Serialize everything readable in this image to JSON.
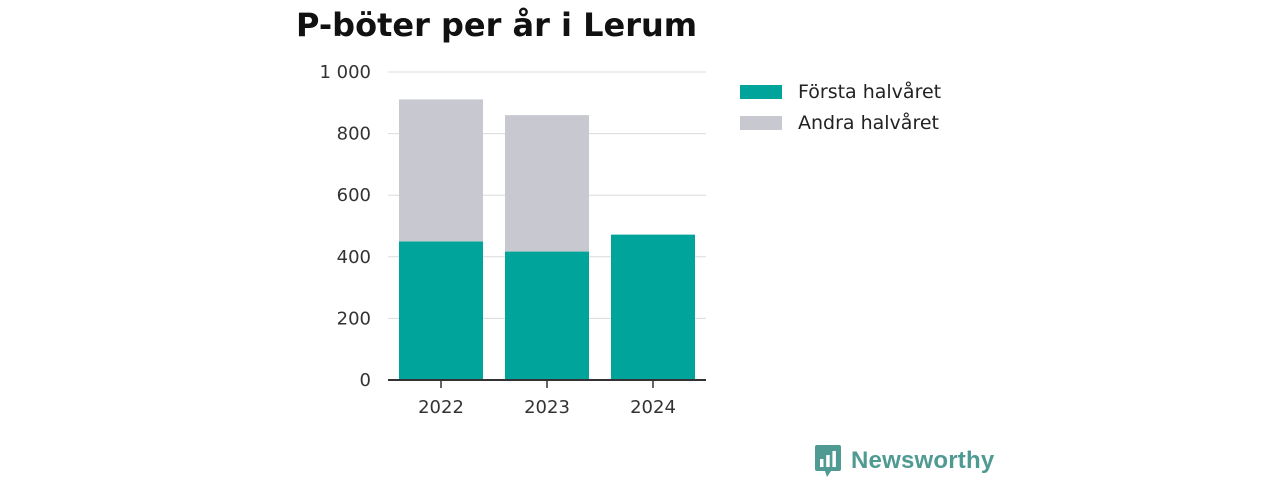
{
  "chart_data": {
    "type": "bar",
    "stacked": true,
    "title": "P-böter per år i Lerum",
    "categories": [
      "2022",
      "2023",
      "2024"
    ],
    "series": [
      {
        "name": "Första halvåret",
        "values": [
          450,
          417,
          472
        ],
        "color": "#00a49b"
      },
      {
        "name": "Andra halvåret",
        "values": [
          461,
          443,
          0
        ],
        "color": "#c8c8d0"
      }
    ],
    "yticks": [
      "0",
      "200",
      "400",
      "600",
      "800",
      "1 000"
    ],
    "ytick_values": [
      0,
      200,
      400,
      600,
      800,
      1000
    ],
    "ylim": [
      0,
      1000
    ],
    "grid": true,
    "legend_position": "right"
  },
  "branding": {
    "name": "Newsworthy",
    "icon": "bar-chart-badge-icon",
    "color": "#4f9a93"
  }
}
